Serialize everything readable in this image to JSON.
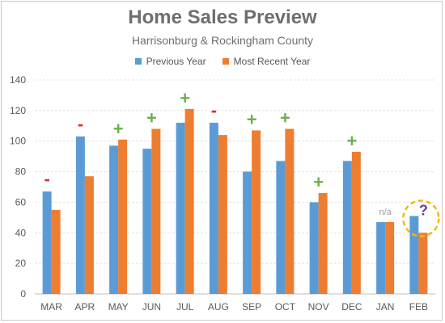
{
  "chart_data": {
    "type": "bar",
    "title": "Home Sales Preview",
    "subtitle": "Harrisonburg & Rockingham County",
    "categories": [
      "MAR",
      "APR",
      "MAY",
      "JUN",
      "JUL",
      "AUG",
      "SEP",
      "OCT",
      "NOV",
      "DEC",
      "JAN",
      "FEB"
    ],
    "series": [
      {
        "name": "Previous Year",
        "color": "#5b9bd5",
        "values": [
          67,
          103,
          97,
          95,
          112,
          112,
          80,
          87,
          60,
          87,
          47,
          51
        ]
      },
      {
        "name": "Most Recent Year",
        "color": "#ed7d31",
        "values": [
          55,
          77,
          101,
          108,
          121,
          104,
          107,
          108,
          66,
          93,
          47,
          40
        ]
      }
    ],
    "ylim": [
      0,
      140
    ],
    "yticks": [
      0,
      20,
      40,
      60,
      80,
      100,
      120,
      140
    ],
    "grid": true,
    "legend_position": "top-center",
    "annotations": [
      "-",
      "-",
      "+",
      "+",
      "+",
      "-",
      "+",
      "+",
      "+",
      "+",
      "n/a",
      "?"
    ],
    "annotation_colors": {
      "+": "#6ab04c",
      "-": "#e0302d",
      "n/a": "#9a9a9a",
      "?": "#6a3d9a"
    },
    "highlight_color": "#f2b817"
  }
}
